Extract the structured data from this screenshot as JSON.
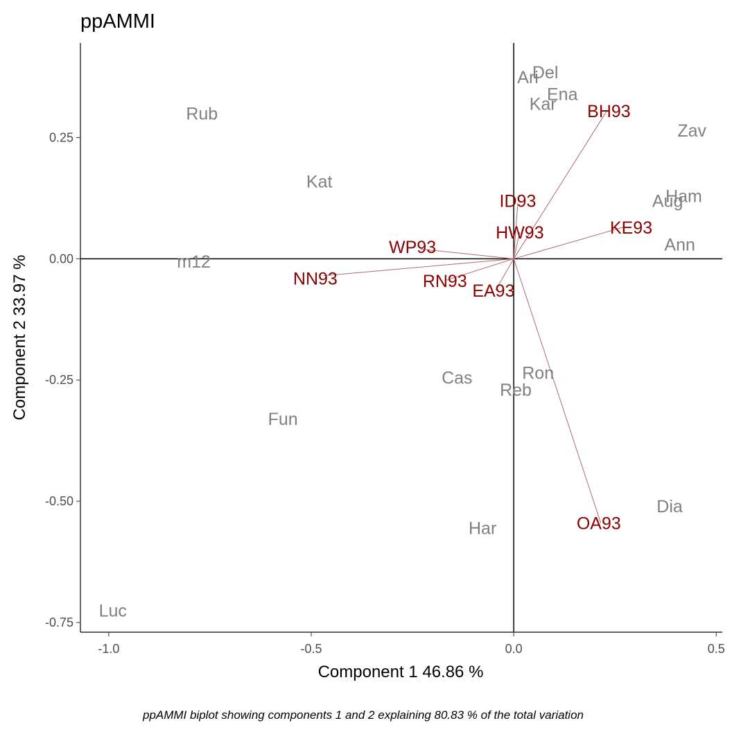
{
  "chart_data": {
    "type": "scatter",
    "title": "ppAMMI",
    "xlabel": "Component 1 46.86 %",
    "ylabel": "Component 2 33.97 %",
    "caption": "ppAMMI biplot showing components 1 and 2 explaining  80.83 % of the total variation",
    "xlim": [
      -1.07,
      0.515
    ],
    "ylim": [
      -0.77,
      0.445
    ],
    "x_ticks": [
      {
        "value": -1.0,
        "label": "-1.0"
      },
      {
        "value": -0.5,
        "label": "-0.5"
      },
      {
        "value": 0.0,
        "label": "0.0"
      },
      {
        "value": 0.5,
        "label": "0.5"
      }
    ],
    "y_ticks": [
      {
        "value": 0.25,
        "label": "0.25"
      },
      {
        "value": 0.0,
        "label": "0.00"
      },
      {
        "value": -0.25,
        "label": "-0.25"
      },
      {
        "value": -0.5,
        "label": "-0.50"
      },
      {
        "value": -0.75,
        "label": "-0.75"
      }
    ],
    "reference_lines": {
      "x": 0,
      "y": 0
    },
    "grid": false,
    "genotypes": [
      {
        "label": "Rub",
        "x": -0.77,
        "y": 0.3
      },
      {
        "label": "Kat",
        "x": -0.48,
        "y": 0.16
      },
      {
        "label": "m12",
        "x": -0.79,
        "y": -0.005
      },
      {
        "label": "Fun",
        "x": -0.57,
        "y": -0.33
      },
      {
        "label": "Cas",
        "x": -0.14,
        "y": -0.245
      },
      {
        "label": "Har",
        "x": -0.077,
        "y": -0.555
      },
      {
        "label": "Luc",
        "x": -0.99,
        "y": -0.725
      },
      {
        "label": "Reb",
        "x": 0.005,
        "y": -0.27
      },
      {
        "label": "Ron",
        "x": 0.06,
        "y": -0.235
      },
      {
        "label": "Dia",
        "x": 0.385,
        "y": -0.51
      },
      {
        "label": "Ann",
        "x": 0.41,
        "y": 0.03
      },
      {
        "label": "Aug",
        "x": 0.38,
        "y": 0.12
      },
      {
        "label": "Ham",
        "x": 0.42,
        "y": 0.13
      },
      {
        "label": "Zav",
        "x": 0.44,
        "y": 0.265
      },
      {
        "label": "Ari",
        "x": 0.035,
        "y": 0.375
      },
      {
        "label": "Del",
        "x": 0.078,
        "y": 0.385
      },
      {
        "label": "Ena",
        "x": 0.12,
        "y": 0.34
      },
      {
        "label": "Kar",
        "x": 0.072,
        "y": 0.32
      }
    ],
    "environments": [
      {
        "label": "BH93",
        "x": 0.23,
        "y": 0.305,
        "tx": 0.235,
        "ty": 0.305
      },
      {
        "label": "ID93",
        "x": 0.01,
        "y": 0.115,
        "tx": 0.01,
        "ty": 0.12
      },
      {
        "label": "HW93",
        "x": 0.015,
        "y": 0.055,
        "tx": 0.015,
        "ty": 0.055
      },
      {
        "label": "KE93",
        "x": 0.27,
        "y": 0.065,
        "tx": 0.29,
        "ty": 0.065
      },
      {
        "label": "WP93",
        "x": -0.23,
        "y": 0.02,
        "tx": -0.25,
        "ty": 0.025
      },
      {
        "label": "NN93",
        "x": -0.47,
        "y": -0.035,
        "tx": -0.49,
        "ty": -0.04
      },
      {
        "label": "RN93",
        "x": -0.17,
        "y": -0.045,
        "tx": -0.17,
        "ty": -0.045
      },
      {
        "label": "EA93",
        "x": -0.045,
        "y": -0.065,
        "tx": -0.05,
        "ty": -0.065
      },
      {
        "label": "OA93",
        "x": 0.215,
        "y": -0.545,
        "tx": 0.21,
        "ty": -0.545
      }
    ]
  }
}
